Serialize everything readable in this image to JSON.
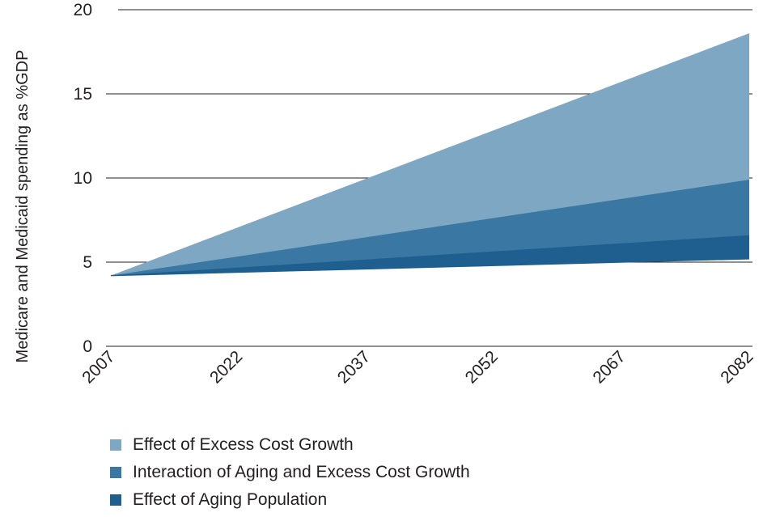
{
  "chart_data": {
    "type": "area",
    "ylabel": "Medicare and Medicaid spending as %GDP",
    "xlabel": "",
    "x": [
      2007,
      2082
    ],
    "x_ticks": [
      "2007",
      "2022",
      "2037",
      "2052",
      "2067",
      "2082"
    ],
    "y_ticks": [
      "0",
      "5",
      "10",
      "15",
      "20"
    ],
    "ylim": [
      0,
      20
    ],
    "baseline_start": 4.2,
    "grid": "horizontal",
    "legend_position": "bottom",
    "series": [
      {
        "name": "Effect of Aging Population",
        "color": "#1f5f8f",
        "values": [
          4.2,
          6.6
        ]
      },
      {
        "name": "Interaction of Aging and Excess Cost Growth",
        "color": "#3b77a3",
        "values": [
          4.2,
          9.9
        ]
      },
      {
        "name": "Effect of Excess Cost Growth",
        "color": "#7ea7c3",
        "values": [
          4.2,
          18.6
        ]
      }
    ],
    "base_line": {
      "values": [
        4.2,
        5.2
      ],
      "color": "#1e5e8c"
    }
  },
  "legend": [
    {
      "label": "Effect of Excess Cost Growth",
      "color": "#7ea7c3"
    },
    {
      "label": "Interaction of Aging and Excess Cost Growth",
      "color": "#3b77a3"
    },
    {
      "label": "Effect of Aging Population",
      "color": "#1f5f8f"
    }
  ]
}
